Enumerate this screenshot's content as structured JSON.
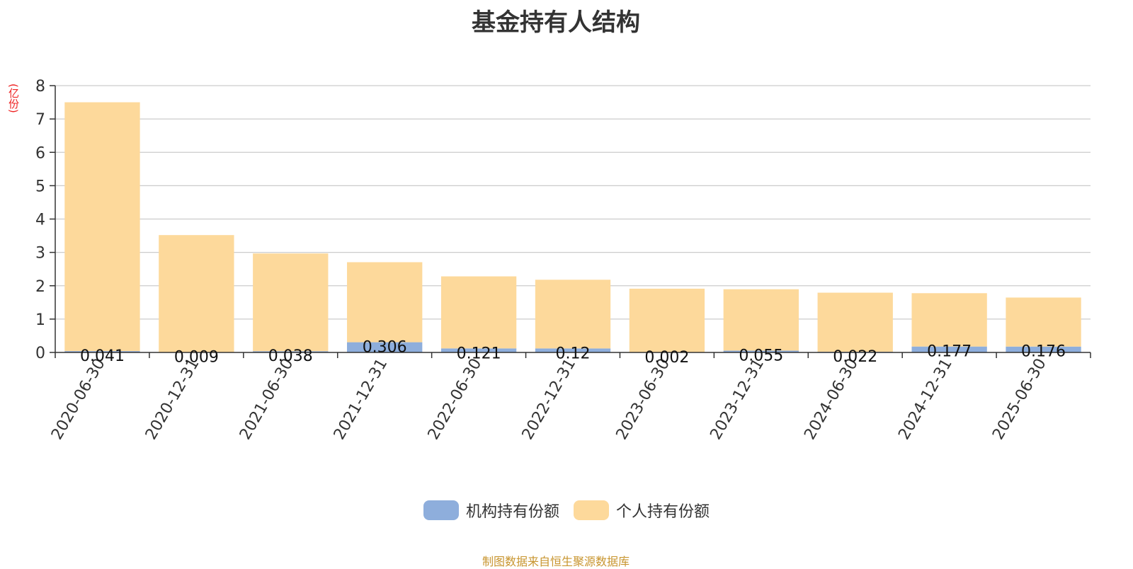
{
  "chart_data": {
    "type": "bar",
    "stacked": true,
    "title": "基金持有人结构",
    "ylabel": "(亿份)",
    "xlabel": "",
    "ylim": [
      0,
      8
    ],
    "yticks": [
      0,
      1,
      2,
      3,
      4,
      5,
      6,
      7,
      8
    ],
    "grid": true,
    "legend_position": "bottom",
    "categories": [
      "2020-06-30",
      "2020-12-31",
      "2021-06-30",
      "2021-12-31",
      "2022-06-30",
      "2022-12-31",
      "2023-06-30",
      "2023-12-31",
      "2024-06-30",
      "2024-12-31",
      "2025-06-30"
    ],
    "series": [
      {
        "name": "机构持有份额",
        "color": "#8eaedc",
        "values": [
          0.041,
          0.009,
          0.038,
          0.306,
          0.121,
          0.12,
          0.002,
          0.055,
          0.022,
          0.177,
          0.176
        ],
        "labels": [
          "0.041",
          "0.009",
          "0.038",
          "0.306",
          "0.121",
          "0.12",
          "0.002",
          "0.055",
          "0.022",
          "0.177",
          "0.176"
        ]
      },
      {
        "name": "个人持有份额",
        "color": "#fdd99b",
        "values": [
          7.46,
          3.51,
          2.93,
          2.4,
          2.16,
          2.06,
          1.91,
          1.84,
          1.77,
          1.6,
          1.47
        ]
      }
    ]
  },
  "source_note": "制图数据来自恒生聚源数据库"
}
